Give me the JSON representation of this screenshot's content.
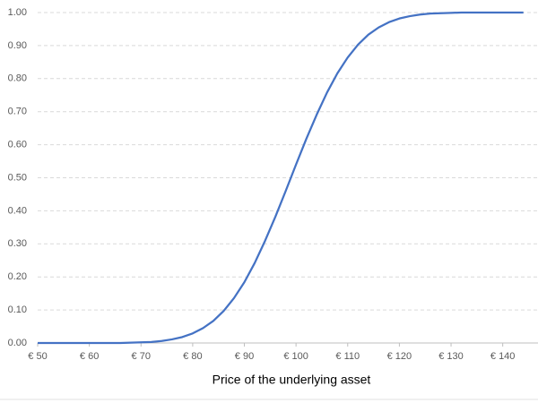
{
  "chart_data": {
    "type": "line",
    "x_label": "Price of the underlying asset",
    "x": [
      50,
      52,
      54,
      56,
      58,
      60,
      62,
      64,
      66,
      68,
      70,
      72,
      74,
      76,
      78,
      80,
      82,
      84,
      86,
      88,
      90,
      92,
      94,
      96,
      98,
      100,
      102,
      104,
      106,
      108,
      110,
      112,
      114,
      116,
      118,
      120,
      122,
      124,
      126,
      128,
      130,
      132,
      134,
      136,
      138,
      140,
      142,
      144
    ],
    "values": [
      0,
      0,
      0,
      0,
      0,
      0,
      0,
      0,
      0,
      0.001,
      0.002,
      0.003,
      0.006,
      0.011,
      0.018,
      0.029,
      0.045,
      0.067,
      0.097,
      0.136,
      0.184,
      0.242,
      0.309,
      0.382,
      0.46,
      0.54,
      0.618,
      0.691,
      0.758,
      0.816,
      0.864,
      0.903,
      0.933,
      0.955,
      0.971,
      0.982,
      0.989,
      0.994,
      0.997,
      0.998,
      0.999,
      1,
      1,
      1,
      1,
      1,
      1,
      1
    ],
    "color": "#4472c4",
    "xlim": [
      50,
      147
    ],
    "ylim": [
      0,
      1
    ],
    "xticks": [
      {
        "value": 50,
        "label": "€ 50"
      },
      {
        "value": 60,
        "label": "€ 60"
      },
      {
        "value": 70,
        "label": "€ 70"
      },
      {
        "value": 80,
        "label": "€ 80"
      },
      {
        "value": 90,
        "label": "€ 90"
      },
      {
        "value": 100,
        "label": "€ 100"
      },
      {
        "value": 110,
        "label": "€ 110"
      },
      {
        "value": 120,
        "label": "€ 120"
      },
      {
        "value": 130,
        "label": "€ 130"
      },
      {
        "value": 140,
        "label": "€ 140"
      }
    ],
    "yticks": [
      {
        "value": 0,
        "label": "0.00"
      },
      {
        "value": 0.1,
        "label": "0.10"
      },
      {
        "value": 0.2,
        "label": "0.20"
      },
      {
        "value": 0.3,
        "label": "0.30"
      },
      {
        "value": 0.4,
        "label": "0.40"
      },
      {
        "value": 0.5,
        "label": "0.50"
      },
      {
        "value": 0.6,
        "label": "0.60"
      },
      {
        "value": 0.7,
        "label": "0.70"
      },
      {
        "value": 0.8,
        "label": "0.80"
      },
      {
        "value": 0.9,
        "label": "0.90"
      },
      {
        "value": 1,
        "label": "1.00"
      }
    ],
    "grid": true
  }
}
